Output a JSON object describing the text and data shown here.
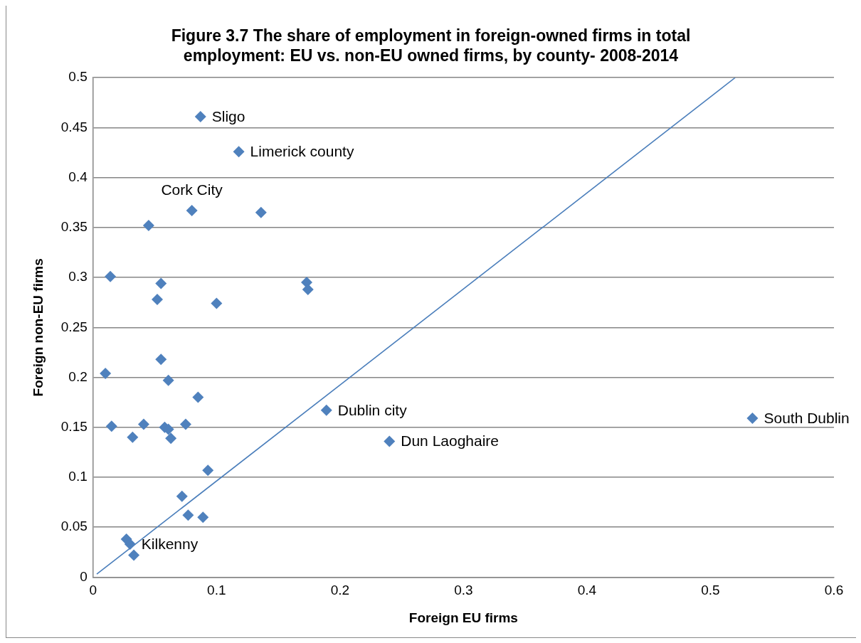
{
  "chart_data": {
    "type": "scatter",
    "title": "Figure 3.7 The share of employment in foreign-owned firms in total employment: EU vs. non-EU owned firms, by county- 2008-2014",
    "xlabel": "Foreign EU firms",
    "ylabel": "Foreign non-EU firms",
    "xlim": [
      0,
      0.6
    ],
    "xticks": [
      0,
      0.1,
      0.2,
      0.3,
      0.4,
      0.5,
      0.6
    ],
    "ylim": [
      0,
      0.5
    ],
    "yticks": [
      0,
      0.05,
      0.1,
      0.15,
      0.2,
      0.25,
      0.3,
      0.35,
      0.4,
      0.45,
      0.5
    ],
    "grid": "y",
    "legend": false,
    "marker": "diamond",
    "series": [
      {
        "color": "#4f81bd",
        "x": [
          0.087,
          0.118,
          0.08,
          0.136,
          0.045,
          0.014,
          0.055,
          0.052,
          0.1,
          0.173,
          0.174,
          0.01,
          0.055,
          0.061,
          0.085,
          0.015,
          0.041,
          0.032,
          0.058,
          0.061,
          0.063,
          0.075,
          0.093,
          0.072,
          0.077,
          0.089,
          0.027,
          0.03,
          0.033,
          0.189,
          0.24,
          0.534
        ],
        "values": [
          0.461,
          0.426,
          0.367,
          0.365,
          0.352,
          0.301,
          0.294,
          0.278,
          0.274,
          0.295,
          0.288,
          0.204,
          0.218,
          0.197,
          0.18,
          0.151,
          0.153,
          0.14,
          0.15,
          0.148,
          0.139,
          0.153,
          0.107,
          0.081,
          0.062,
          0.06,
          0.038,
          0.033,
          0.022,
          0.167,
          0.136,
          0.159
        ]
      },
      {
        "type": "line",
        "color": "#4a7ebb",
        "marker": "none",
        "x": [
          0.003,
          0.52
        ],
        "values": [
          0.003,
          0.5
        ]
      }
    ],
    "annotations": [
      {
        "text": "Sligo",
        "x": 0.087,
        "y": 0.461
      },
      {
        "text": "Limerick county",
        "x": 0.118,
        "y": 0.426
      },
      {
        "text": "Cork City",
        "x": 0.08,
        "y": 0.367
      },
      {
        "text": "Kilkenny",
        "x": 0.03,
        "y": 0.033
      },
      {
        "text": "Dublin city",
        "x": 0.189,
        "y": 0.167
      },
      {
        "text": "Dun Laoghaire",
        "x": 0.24,
        "y": 0.136
      },
      {
        "text": "South Dublin",
        "x": 0.534,
        "y": 0.159
      }
    ]
  }
}
